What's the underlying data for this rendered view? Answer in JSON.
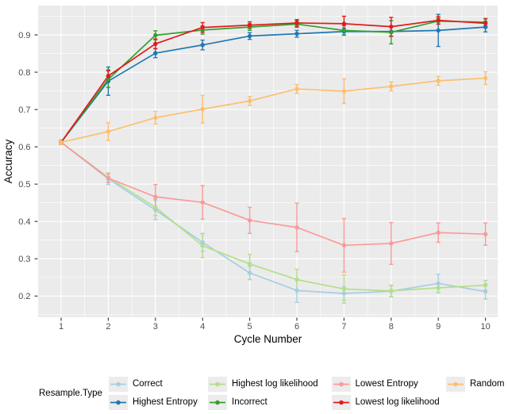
{
  "chart_data": {
    "type": "line",
    "title": "",
    "xlabel": "Cycle Number",
    "ylabel": "Accuracy",
    "x": [
      1,
      2,
      3,
      4,
      5,
      6,
      7,
      8,
      9,
      10
    ],
    "xtick_labels": [
      "1",
      "2",
      "3",
      "4",
      "5",
      "6",
      "7",
      "8",
      "9",
      "10"
    ],
    "yticks": [
      0.2,
      0.3,
      0.4,
      0.5,
      0.6,
      0.7,
      0.8,
      0.9
    ],
    "ytick_labels": [
      "0.2",
      "0.3",
      "0.4",
      "0.5",
      "0.6",
      "0.7",
      "0.8",
      "0.9"
    ],
    "ylim": [
      0.145,
      0.98
    ],
    "grid": "on",
    "panel_bg": "#EBEBEB",
    "grid_color": "#FFFFFF",
    "tick_label_color": "#4D4D4D",
    "legend_position": "bottom",
    "legend_title": "Resample.Type",
    "legend_key_bg": "#ECECEC",
    "series": [
      {
        "name": "Correct",
        "color": "#A6CEE3",
        "values": [
          0.612,
          0.514,
          0.431,
          0.344,
          0.262,
          0.215,
          0.207,
          0.213,
          0.234,
          0.212
        ],
        "errors": [
          0.006,
          0.015,
          0.026,
          0.024,
          0.018,
          0.032,
          0.018,
          0.015,
          0.025,
          0.02
        ]
      },
      {
        "name": "Highest Entropy",
        "color": "#1F78B4",
        "values": [
          0.612,
          0.776,
          0.851,
          0.873,
          0.897,
          0.903,
          0.909,
          0.909,
          0.912,
          0.921
        ],
        "errors": [
          0.006,
          0.038,
          0.012,
          0.013,
          0.009,
          0.009,
          0.009,
          0.013,
          0.043,
          0.013
        ]
      },
      {
        "name": "Highest log likelihood",
        "color": "#B2DF8A",
        "values": [
          0.612,
          0.518,
          0.438,
          0.335,
          0.286,
          0.244,
          0.219,
          0.214,
          0.222,
          0.229
        ],
        "errors": [
          0.006,
          0.012,
          0.022,
          0.032,
          0.026,
          0.028,
          0.038,
          0.015,
          0.013,
          0.013
        ]
      },
      {
        "name": "Incorrect",
        "color": "#33A02C",
        "values": [
          0.612,
          0.781,
          0.899,
          0.913,
          0.921,
          0.929,
          0.912,
          0.907,
          0.937,
          0.934
        ],
        "errors": [
          0.006,
          0.022,
          0.012,
          0.011,
          0.009,
          0.009,
          0.013,
          0.031,
          0.008,
          0.01
        ]
      },
      {
        "name": "Lowest Entropy",
        "color": "#FB9A99",
        "values": [
          0.612,
          0.516,
          0.466,
          0.451,
          0.403,
          0.384,
          0.336,
          0.341,
          0.37,
          0.366
        ],
        "errors": [
          0.006,
          0.012,
          0.033,
          0.045,
          0.035,
          0.065,
          0.072,
          0.056,
          0.026,
          0.03
        ]
      },
      {
        "name": "Lowest log likelihood",
        "color": "#E31A1C",
        "values": [
          0.612,
          0.79,
          0.876,
          0.92,
          0.926,
          0.932,
          0.93,
          0.922,
          0.939,
          0.931
        ],
        "errors": [
          0.006,
          0.016,
          0.013,
          0.013,
          0.009,
          0.009,
          0.02,
          0.025,
          0.01,
          0.012
        ]
      },
      {
        "name": "Random",
        "color": "#FDBF6F",
        "values": [
          0.612,
          0.641,
          0.678,
          0.701,
          0.723,
          0.755,
          0.749,
          0.762,
          0.777,
          0.784
        ],
        "errors": [
          0.006,
          0.024,
          0.017,
          0.037,
          0.012,
          0.012,
          0.033,
          0.012,
          0.012,
          0.017
        ]
      }
    ]
  }
}
